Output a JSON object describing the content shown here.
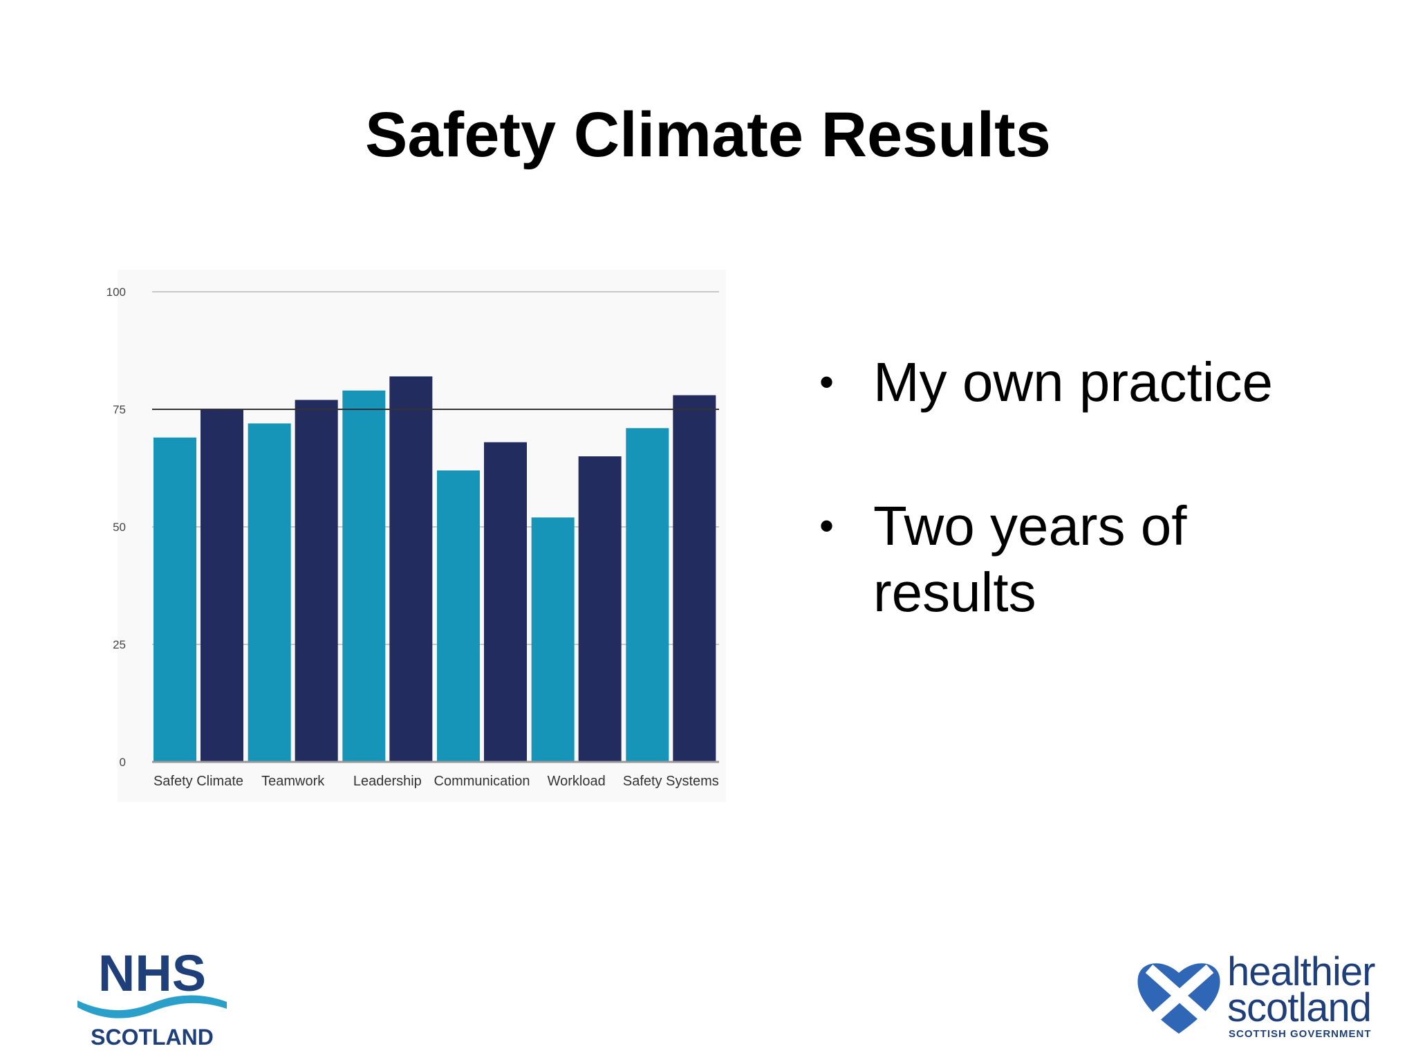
{
  "slide": {
    "title": "Safety Climate Results",
    "bullets": [
      "My own practice",
      "Two years of results"
    ]
  },
  "logos": {
    "nhs": {
      "text": "NHS",
      "sub": "SCOTLAND"
    },
    "healthier_scotland": {
      "line1": "healthier",
      "line2": "scotland",
      "line3": "SCOTTISH GOVERNMENT"
    }
  },
  "colors": {
    "series1": "#1795b8",
    "series2": "#232c5e",
    "nhs_blue": "#1f3f7a",
    "nhs_wave": "#2a9fc9"
  },
  "chart_data": {
    "type": "bar",
    "categories": [
      "Safety Climate",
      "Teamwork",
      "Leadership",
      "Communication",
      "Workload",
      "Safety Systems"
    ],
    "series": [
      {
        "values": [
          69,
          72,
          79,
          62,
          52,
          71
        ],
        "color": "#1795b8"
      },
      {
        "values": [
          75,
          77,
          82,
          68,
          65,
          78
        ],
        "color": "#232c5e"
      }
    ],
    "yticks": [
      0,
      25,
      50,
      75,
      100
    ],
    "ylim": [
      0,
      100
    ],
    "grid": true,
    "reference_line": 75,
    "title": "",
    "xlabel": "",
    "ylabel": ""
  }
}
